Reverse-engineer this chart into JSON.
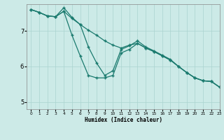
{
  "xlabel": "Humidex (Indice chaleur)",
  "background_color": "#cceae7",
  "grid_color": "#aad4d0",
  "line_color": "#1a7a6e",
  "xlim": [
    -0.5,
    23
  ],
  "ylim": [
    4.8,
    7.75
  ],
  "yticks": [
    5,
    6,
    7
  ],
  "xticks": [
    0,
    1,
    2,
    3,
    4,
    5,
    6,
    7,
    8,
    9,
    10,
    11,
    12,
    13,
    14,
    15,
    16,
    17,
    18,
    19,
    20,
    21,
    22,
    23
  ],
  "series1_x": [
    0,
    1,
    2,
    3,
    4,
    5,
    6,
    7,
    8,
    9,
    10,
    11,
    12,
    13,
    14,
    15,
    16,
    17,
    18,
    19,
    20,
    21,
    22,
    23
  ],
  "series1_y": [
    7.6,
    7.52,
    7.42,
    7.4,
    7.55,
    7.35,
    7.18,
    7.02,
    6.88,
    6.72,
    6.6,
    6.52,
    6.6,
    6.65,
    6.52,
    6.42,
    6.3,
    6.18,
    6.0,
    5.83,
    5.68,
    5.6,
    5.58,
    5.42
  ],
  "series2_x": [
    0,
    1,
    2,
    3,
    4,
    5,
    6,
    7,
    8,
    9,
    10,
    11,
    12,
    13,
    14,
    15,
    16,
    17,
    18,
    19,
    20,
    21,
    22,
    23
  ],
  "series2_y": [
    7.6,
    7.52,
    7.42,
    7.4,
    7.55,
    6.88,
    6.3,
    5.75,
    5.68,
    5.68,
    5.75,
    6.38,
    6.48,
    6.65,
    6.52,
    6.42,
    6.3,
    6.18,
    6.0,
    5.83,
    5.68,
    5.6,
    5.58,
    5.42
  ],
  "series3_x": [
    0,
    1,
    2,
    3,
    4,
    5,
    6,
    7,
    8,
    9,
    10,
    11,
    12,
    13,
    14,
    15,
    16,
    17,
    18,
    19,
    20,
    21,
    22,
    23
  ],
  "series3_y": [
    7.6,
    7.52,
    7.42,
    7.4,
    7.65,
    7.38,
    7.18,
    6.55,
    6.1,
    5.75,
    5.88,
    6.48,
    6.58,
    6.72,
    6.55,
    6.44,
    6.32,
    6.2,
    6.0,
    5.83,
    5.68,
    5.6,
    5.58,
    5.42
  ]
}
